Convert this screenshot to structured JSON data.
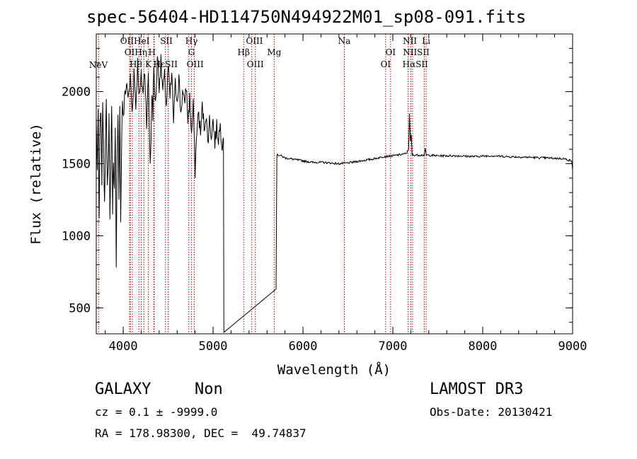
{
  "chart_data": {
    "type": "line",
    "title": "spec-56404-HD114750N494922M01_sp08-091.fits",
    "xlabel": "Wavelength (Å)",
    "ylabel": "Flux (relative)",
    "xlim": [
      3700,
      9000
    ],
    "ylim": [
      320,
      2400
    ],
    "xticks": [
      {
        "value": 4000,
        "label": "4000"
      },
      {
        "value": 5000,
        "label": "5000"
      },
      {
        "value": 6000,
        "label": "6000"
      },
      {
        "value": 7000,
        "label": "7000"
      },
      {
        "value": 8000,
        "label": "8000"
      },
      {
        "value": 9000,
        "label": "9000"
      }
    ],
    "yticks": [
      {
        "value": 500,
        "label": "500"
      },
      {
        "value": 1000,
        "label": "1000"
      },
      {
        "value": 1500,
        "label": "1500"
      },
      {
        "value": 2000,
        "label": "2000"
      }
    ],
    "series": [
      {
        "name": "spectrum",
        "anchors": [
          [
            3700,
            1820
          ],
          [
            3712,
            1450
          ],
          [
            3722,
            1880
          ],
          [
            3732,
            1100
          ],
          [
            3742,
            1700
          ],
          [
            3752,
            1900
          ],
          [
            3762,
            1350
          ],
          [
            3772,
            1960
          ],
          [
            3782,
            1600
          ],
          [
            3792,
            1250
          ],
          [
            3802,
            1620
          ],
          [
            3812,
            1950
          ],
          [
            3822,
            1300
          ],
          [
            3832,
            1450
          ],
          [
            3842,
            1850
          ],
          [
            3852,
            1100
          ],
          [
            3862,
            1500
          ],
          [
            3872,
            1900
          ],
          [
            3882,
            1200
          ],
          [
            3892,
            1550
          ],
          [
            3902,
            1300
          ],
          [
            3912,
            1750
          ],
          [
            3922,
            780
          ],
          [
            3932,
            1500
          ],
          [
            3942,
            1800
          ],
          [
            3952,
            1250
          ],
          [
            3962,
            1900
          ],
          [
            3972,
            1150
          ],
          [
            3982,
            1650
          ],
          [
            3992,
            1950
          ],
          [
            4002,
            1800
          ],
          [
            4020,
            2000
          ],
          [
            4040,
            2050
          ],
          [
            4060,
            1950
          ],
          [
            4080,
            2100
          ],
          [
            4100,
            1850
          ],
          [
            4120,
            2150
          ],
          [
            4140,
            1900
          ],
          [
            4160,
            2200
          ],
          [
            4180,
            1950
          ],
          [
            4200,
            2100
          ],
          [
            4220,
            2000
          ],
          [
            4240,
            2150
          ],
          [
            4260,
            1800
          ],
          [
            4280,
            2100
          ],
          [
            4300,
            1500
          ],
          [
            4310,
            1700
          ],
          [
            4320,
            2000
          ],
          [
            4330,
            1850
          ],
          [
            4340,
            2150
          ],
          [
            4360,
            1900
          ],
          [
            4380,
            2250
          ],
          [
            4400,
            2050
          ],
          [
            4420,
            2200
          ],
          [
            4440,
            2000
          ],
          [
            4460,
            2100
          ],
          [
            4480,
            1900
          ],
          [
            4500,
            2180
          ],
          [
            4520,
            1950
          ],
          [
            4540,
            2120
          ],
          [
            4560,
            1800
          ],
          [
            4580,
            2050
          ],
          [
            4600,
            1950
          ],
          [
            4620,
            2100
          ],
          [
            4640,
            1850
          ],
          [
            4660,
            2000
          ],
          [
            4680,
            1900
          ],
          [
            4700,
            2050
          ],
          [
            4720,
            1800
          ],
          [
            4740,
            1950
          ],
          [
            4760,
            1700
          ],
          [
            4780,
            1900
          ],
          [
            4800,
            1450
          ],
          [
            4820,
            1750
          ],
          [
            4840,
            1850
          ],
          [
            4860,
            1700
          ],
          [
            4880,
            1900
          ],
          [
            4900,
            1750
          ],
          [
            4920,
            1850
          ],
          [
            4940,
            1650
          ],
          [
            4960,
            1800
          ],
          [
            4980,
            1700
          ],
          [
            5000,
            1800
          ],
          [
            5020,
            1650
          ],
          [
            5040,
            1750
          ],
          [
            5060,
            1680
          ],
          [
            5080,
            1760
          ],
          [
            5100,
            1650
          ],
          [
            5115,
            1680
          ],
          [
            5120,
            330
          ],
          [
            5700,
            630
          ],
          [
            5710,
            1560
          ],
          [
            5740,
            1560
          ],
          [
            5800,
            1540
          ],
          [
            5900,
            1530
          ],
          [
            6000,
            1520
          ],
          [
            6100,
            1510
          ],
          [
            6200,
            1510
          ],
          [
            6300,
            1505
          ],
          [
            6400,
            1500
          ],
          [
            6500,
            1505
          ],
          [
            6600,
            1515
          ],
          [
            6700,
            1525
          ],
          [
            6800,
            1535
          ],
          [
            6900,
            1550
          ],
          [
            7000,
            1555
          ],
          [
            7100,
            1565
          ],
          [
            7150,
            1570
          ],
          [
            7175,
            1600
          ],
          [
            7185,
            1850
          ],
          [
            7195,
            1650
          ],
          [
            7205,
            1700
          ],
          [
            7215,
            1560
          ],
          [
            7300,
            1560
          ],
          [
            7350,
            1560
          ],
          [
            7362,
            1600
          ],
          [
            7372,
            1560
          ],
          [
            7500,
            1555
          ],
          [
            7700,
            1555
          ],
          [
            7900,
            1550
          ],
          [
            8100,
            1555
          ],
          [
            8300,
            1548
          ],
          [
            8500,
            1545
          ],
          [
            8700,
            1540
          ],
          [
            8900,
            1535
          ],
          [
            8990,
            1520
          ],
          [
            9000,
            1450
          ]
        ]
      }
    ],
    "line_markers": [
      {
        "wavelength": 3726,
        "name": "NeV"
      },
      {
        "wavelength": 4070,
        "name": "OII"
      },
      {
        "wavelength": 4080,
        "name": "OI"
      },
      {
        "wavelength": 4102,
        "name": "Hδ"
      },
      {
        "wavelength": 4175,
        "name": "Hη"
      },
      {
        "wavelength": 4200,
        "name": "Hε"
      },
      {
        "wavelength": 4230,
        "name": "Hθ"
      },
      {
        "wavelength": 4280,
        "name": "K"
      },
      {
        "wavelength": 4340,
        "name": "H"
      },
      {
        "wavelength": 4345,
        "name": "HeI"
      },
      {
        "wavelength": 4470,
        "name": "SII"
      },
      {
        "wavelength": 4500,
        "name": "Hδ"
      },
      {
        "wavelength": 4730,
        "name": "Hγ"
      },
      {
        "wavelength": 4760,
        "name": "G"
      },
      {
        "wavelength": 4790,
        "name": "OIII"
      },
      {
        "wavelength": 5340,
        "name": "Hβ"
      },
      {
        "wavelength": 5430,
        "name": "OIII"
      },
      {
        "wavelength": 5470,
        "name": "OIII"
      },
      {
        "wavelength": 5680,
        "name": "Mg"
      },
      {
        "wavelength": 6460,
        "name": "Na"
      },
      {
        "wavelength": 6920,
        "name": "OI"
      },
      {
        "wavelength": 6975,
        "name": "OI"
      },
      {
        "wavelength": 7170,
        "name": "NII"
      },
      {
        "wavelength": 7200,
        "name": "Hα"
      },
      {
        "wavelength": 7220,
        "name": "NII"
      },
      {
        "wavelength": 7350,
        "name": "SII"
      },
      {
        "wavelength": 7370,
        "name": "Li"
      }
    ],
    "label_rows": [
      {
        "row": 0,
        "items": [
          {
            "wavelength": 4130,
            "text": "OIIHeI"
          },
          {
            "wavelength": 4480,
            "text": "SII"
          },
          {
            "wavelength": 4760,
            "text": "Hγ"
          },
          {
            "wavelength": 5460,
            "text": "OIII"
          },
          {
            "wavelength": 6460,
            "text": "Na"
          },
          {
            "wavelength": 7190,
            "text": "NII"
          },
          {
            "wavelength": 7370,
            "text": "Li"
          }
        ]
      },
      {
        "row": 1,
        "items": [
          {
            "wavelength": 4140,
            "text": "OIHη"
          },
          {
            "wavelength": 4320,
            "text": "H"
          },
          {
            "wavelength": 4760,
            "text": "G"
          },
          {
            "wavelength": 5340,
            "text": "Hβ"
          },
          {
            "wavelength": 5680,
            "text": "Mg"
          },
          {
            "wavelength": 6975,
            "text": "OI"
          },
          {
            "wavelength": 7260,
            "text": "NIISII"
          }
        ]
      },
      {
        "row": 2,
        "items": [
          {
            "wavelength": 4140,
            "text": "Hθ"
          },
          {
            "wavelength": 4280,
            "text": "K"
          },
          {
            "wavelength": 4470,
            "text": "HεSII"
          },
          {
            "wavelength": 4800,
            "text": "OIII"
          },
          {
            "wavelength": 5470,
            "text": "OIII"
          },
          {
            "wavelength": 6920,
            "text": "OI"
          },
          {
            "wavelength": 7250,
            "text": "HαSII"
          }
        ]
      }
    ]
  },
  "info": {
    "object_class": "GALAXY",
    "subclass": "Non",
    "survey": "LAMOST DR3",
    "cz_line": "cz = 0.1 ± -9999.0",
    "obs_date_line": "Obs-Date: 20130421",
    "coord_line": "RA = 178.98300, DEC =  49.74837"
  }
}
